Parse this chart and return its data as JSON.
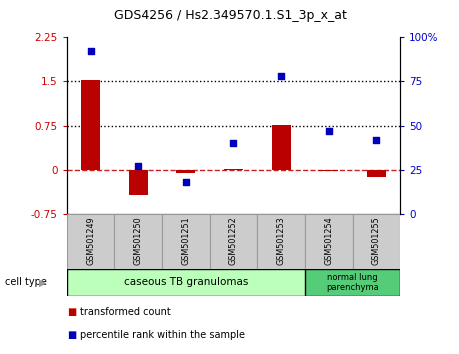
{
  "title": "GDS4256 / Hs2.349570.1.S1_3p_x_at",
  "samples": [
    "GSM501249",
    "GSM501250",
    "GSM501251",
    "GSM501252",
    "GSM501253",
    "GSM501254",
    "GSM501255"
  ],
  "transformed_count": [
    1.52,
    -0.42,
    -0.05,
    0.02,
    0.76,
    -0.02,
    -0.12
  ],
  "percentile_rank": [
    92,
    27,
    18,
    40,
    78,
    47,
    42
  ],
  "ylim_left": [
    -0.75,
    2.25
  ],
  "ylim_right": [
    0,
    100
  ],
  "yticks_left": [
    -0.75,
    0,
    0.75,
    1.5,
    2.25
  ],
  "yticks_right": [
    0,
    25,
    50,
    75,
    100
  ],
  "ytick_labels_right": [
    "0",
    "25",
    "50",
    "75",
    "100%"
  ],
  "hlines": [
    0.75,
    1.5
  ],
  "bar_color": "#bb0000",
  "dot_color": "#0000bb",
  "dashed_line_color": "#cc2222",
  "cell_type_groups": [
    {
      "label": "caseous TB granulomas",
      "start": 0,
      "end": 4,
      "color": "#bbffbb"
    },
    {
      "label": "normal lung\nparenchyma",
      "start": 5,
      "end": 6,
      "color": "#55cc77"
    }
  ],
  "legend_items": [
    {
      "label": "transformed count",
      "color": "#bb0000"
    },
    {
      "label": "percentile rank within the sample",
      "color": "#0000bb"
    }
  ],
  "cell_type_label": "cell type",
  "sample_box_color": "#cccccc",
  "sample_box_edge": "#999999",
  "background_color": "#ffffff",
  "tick_label_color_left": "#cc0000",
  "tick_label_color_right": "#0000cc",
  "bar_width": 0.4
}
